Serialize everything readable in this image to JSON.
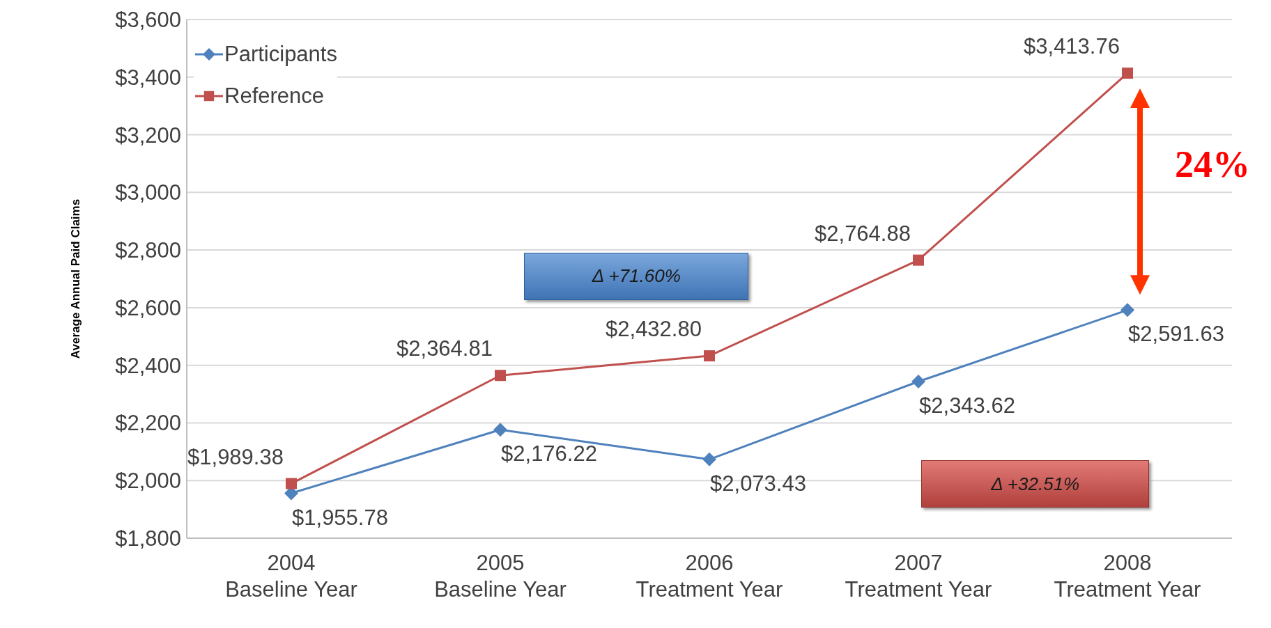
{
  "chart_data": {
    "type": "line",
    "ylabel": "Average Annual Paid Claims",
    "categories": [
      "2004\nBaseline Year",
      "2005\nBaseline Year",
      "2006\nTreatment Year",
      "2007\nTreatment Year",
      "2008\nTreatment Year"
    ],
    "series": [
      {
        "name": "Participants",
        "color": "#4f81bd",
        "marker": "diamond",
        "values": [
          1955.78,
          2176.22,
          2073.43,
          2343.62,
          2591.63
        ],
        "value_labels": [
          "$1,955.78",
          "$2,176.22",
          "$2,073.43",
          "$2,343.62",
          "$2,591.63"
        ]
      },
      {
        "name": "Reference",
        "color": "#c0504d",
        "marker": "square",
        "values": [
          1989.38,
          2364.81,
          2432.8,
          2764.88,
          3413.76
        ],
        "value_labels": [
          "$1,989.38",
          "$2,364.81",
          "$2,432.80",
          "$2,764.88",
          "$3,413.76"
        ]
      }
    ],
    "ylim": [
      1800,
      3600
    ],
    "yticks": [
      {
        "value": 1800,
        "label": "$1,800"
      },
      {
        "value": 2000,
        "label": "$2,000"
      },
      {
        "value": 2200,
        "label": "$2,200"
      },
      {
        "value": 2400,
        "label": "$2,400"
      },
      {
        "value": 2600,
        "label": "$2,600"
      },
      {
        "value": 2800,
        "label": "$2,800"
      },
      {
        "value": 3000,
        "label": "$3,000"
      },
      {
        "value": 3200,
        "label": "$3,200"
      },
      {
        "value": 3400,
        "label": "$3,400"
      },
      {
        "value": 3600,
        "label": "$3,600"
      }
    ],
    "grid": "y",
    "legend": "top left",
    "annotations": [
      "Δ +71.60%",
      "Δ +32.51%",
      "24%"
    ]
  }
}
